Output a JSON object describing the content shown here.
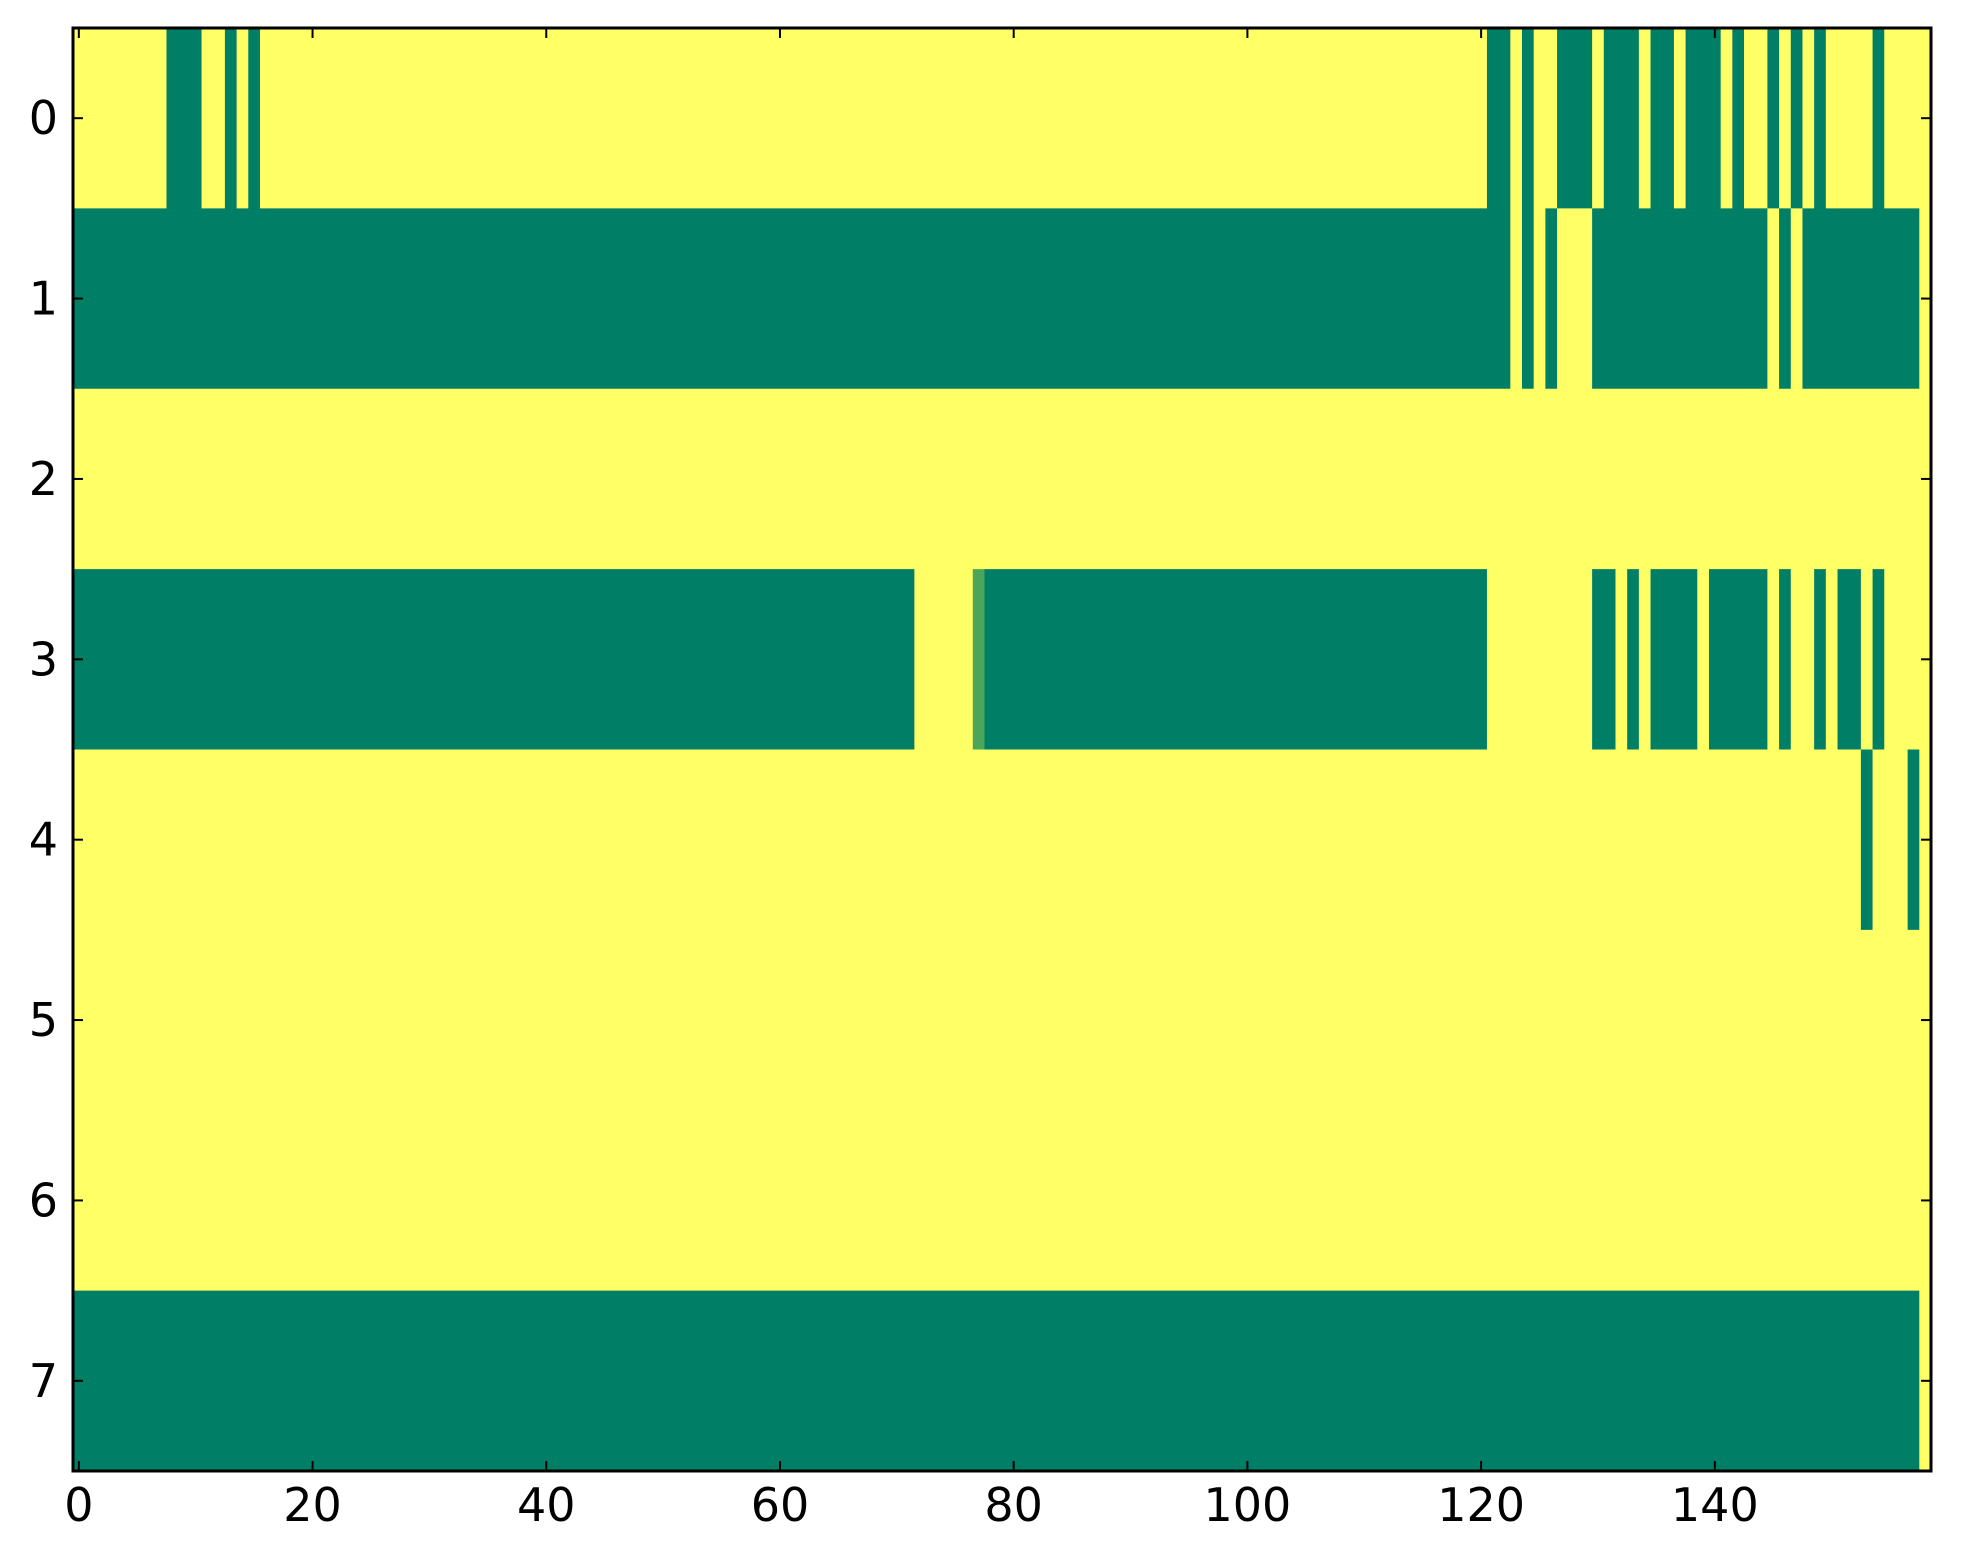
{
  "colors": {
    "low": "#007f66",
    "high": "#ffff66",
    "mid": "#4ca65a",
    "axis": "#000000",
    "background": "#ffffff"
  },
  "chart_data": {
    "type": "heatmap",
    "title": "",
    "xlabel": "",
    "ylabel": "",
    "grid": false,
    "legend": "none",
    "colormap": "summer",
    "ncols": 158,
    "rows": [
      0,
      1,
      2,
      3,
      4,
      5,
      6,
      7
    ],
    "xlim": [
      -0.5,
      158.5
    ],
    "ylim": [
      7.5,
      -0.5
    ],
    "xticks": [
      0,
      20,
      40,
      60,
      80,
      100,
      120,
      140
    ],
    "yticks": [
      0,
      1,
      2,
      3,
      4,
      5,
      6,
      7
    ],
    "xtick_labels": [
      "0",
      "20",
      "40",
      "60",
      "80",
      "100",
      "120",
      "140"
    ],
    "ytick_labels": [
      "0",
      "1",
      "2",
      "3",
      "4",
      "5",
      "6",
      "7"
    ],
    "cells_note_value_scale": "0 = green, 1 = yellow",
    "data": [
      {
        "row": 0,
        "segments": [
          [
            0,
            7,
            1
          ],
          [
            8,
            10,
            0
          ],
          [
            11,
            12,
            1
          ],
          [
            13,
            13,
            0
          ],
          [
            14,
            14,
            1
          ],
          [
            15,
            15,
            0
          ],
          [
            16,
            120,
            1
          ],
          [
            121,
            122,
            0
          ],
          [
            123,
            123,
            1
          ],
          [
            124,
            124,
            0
          ],
          [
            125,
            126,
            1
          ],
          [
            127,
            129,
            0
          ],
          [
            130,
            130,
            1
          ],
          [
            131,
            133,
            0
          ],
          [
            134,
            134,
            1
          ],
          [
            135,
            136,
            0
          ],
          [
            137,
            137,
            1
          ],
          [
            138,
            140,
            0
          ],
          [
            141,
            141,
            1
          ],
          [
            142,
            142,
            0
          ],
          [
            143,
            144,
            1
          ],
          [
            145,
            145,
            0
          ],
          [
            146,
            146,
            1
          ],
          [
            147,
            147,
            0
          ],
          [
            148,
            148,
            1
          ],
          [
            149,
            149,
            0
          ],
          [
            150,
            153,
            1
          ],
          [
            154,
            154,
            0
          ],
          [
            155,
            158,
            1
          ]
        ]
      },
      {
        "row": 1,
        "segments": [
          [
            0,
            122,
            0
          ],
          [
            123,
            123,
            1
          ],
          [
            124,
            124,
            0
          ],
          [
            125,
            125,
            1
          ],
          [
            126,
            126,
            0
          ],
          [
            127,
            129,
            1
          ],
          [
            130,
            144,
            0
          ],
          [
            145,
            145,
            1
          ],
          [
            146,
            146,
            0
          ],
          [
            147,
            147,
            1
          ],
          [
            148,
            157,
            0
          ],
          [
            158,
            158,
            1
          ]
        ]
      },
      {
        "row": 2,
        "segments": [
          [
            0,
            158,
            1
          ]
        ]
      },
      {
        "row": 3,
        "segments": [
          [
            0,
            71,
            0
          ],
          [
            72,
            76,
            1
          ],
          [
            77,
            77,
            0.3
          ],
          [
            78,
            120,
            0
          ],
          [
            121,
            129,
            1
          ],
          [
            130,
            131,
            0
          ],
          [
            132,
            132,
            1
          ],
          [
            133,
            133,
            0
          ],
          [
            134,
            134,
            1
          ],
          [
            135,
            138,
            0
          ],
          [
            139,
            139,
            1
          ],
          [
            140,
            144,
            0
          ],
          [
            145,
            145,
            1
          ],
          [
            146,
            146,
            0
          ],
          [
            147,
            148,
            1
          ],
          [
            149,
            149,
            0
          ],
          [
            150,
            150,
            1
          ],
          [
            151,
            152,
            0
          ],
          [
            153,
            153,
            1
          ],
          [
            154,
            154,
            0
          ],
          [
            155,
            158,
            1
          ]
        ]
      },
      {
        "row": 4,
        "segments": [
          [
            0,
            152,
            1
          ],
          [
            153,
            153,
            0
          ],
          [
            154,
            156,
            1
          ],
          [
            157,
            157,
            0
          ],
          [
            158,
            158,
            1
          ]
        ]
      },
      {
        "row": 5,
        "segments": [
          [
            0,
            158,
            1
          ]
        ]
      },
      {
        "row": 6,
        "segments": [
          [
            0,
            158,
            1
          ]
        ]
      },
      {
        "row": 7,
        "segments": [
          [
            0,
            157,
            0
          ],
          [
            158,
            158,
            1
          ]
        ]
      }
    ]
  }
}
